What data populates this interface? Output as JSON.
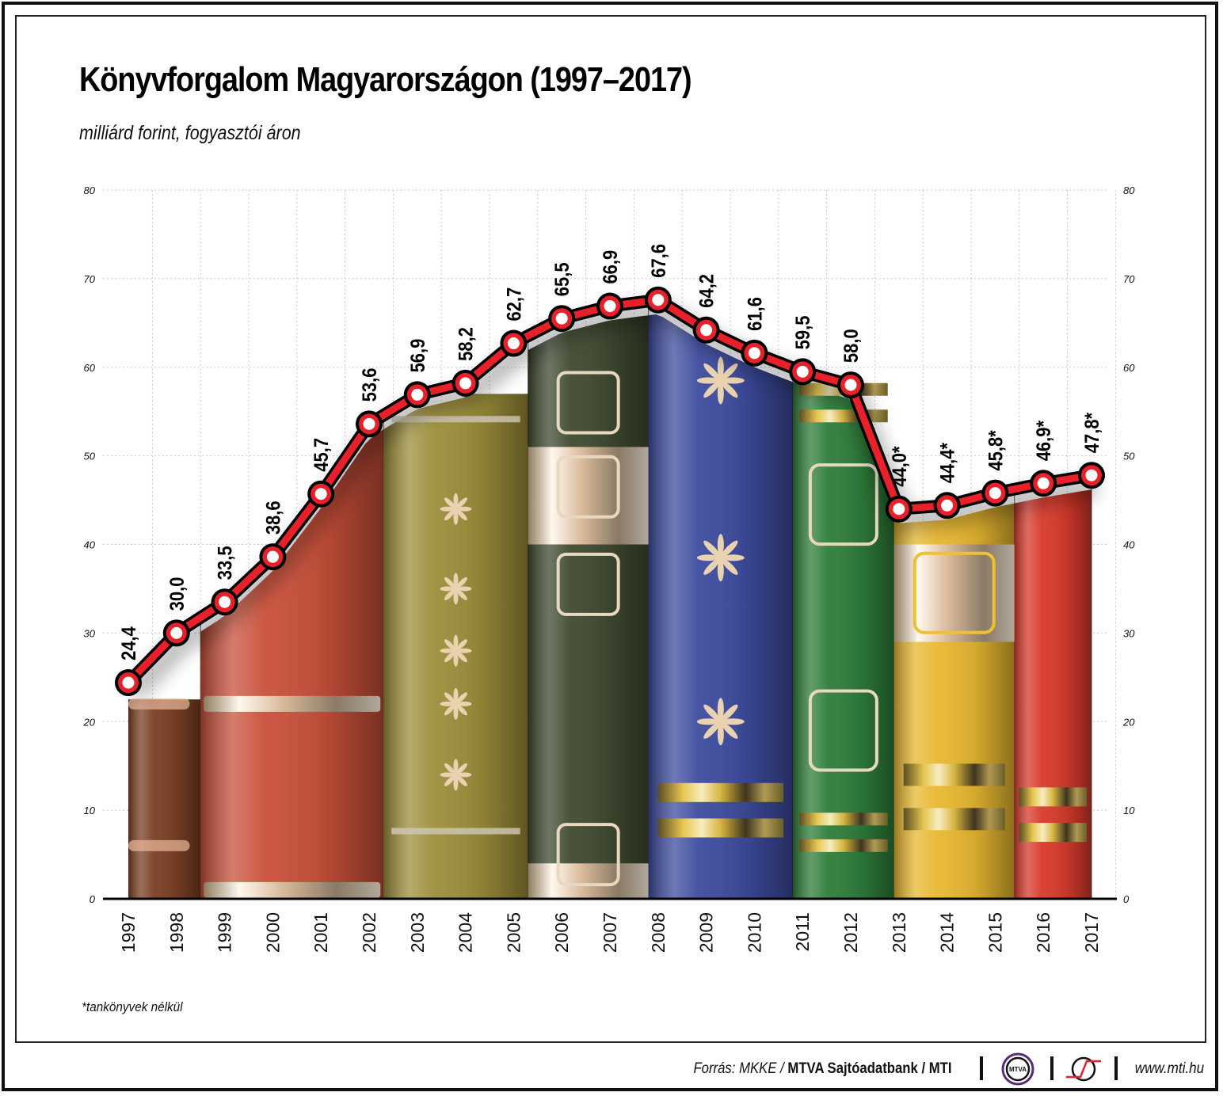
{
  "header": {
    "title": "Könyvforgalom Magyarországon (1997–2017)",
    "subtitle": "milliárd forint, fogyasztói áron"
  },
  "footnote": "*tankönyvek nélkül",
  "footer": {
    "source_prefix": "Forrás: MKKE / ",
    "source_bold": "MTVA Sajtóadatbank / MTI",
    "mtva_logo_text": "MTVA",
    "url": "www.mti.hu"
  },
  "colors": {
    "line": "#e8202a",
    "line_outline": "#000000",
    "marker_fill": "#ffffff",
    "grid": "#c8c8c8"
  },
  "chart_data": {
    "type": "line",
    "title": "Könyvforgalom Magyarországon (1997–2017)",
    "subtitle": "milliárd forint, fogyasztói áron",
    "xlabel": "",
    "ylabel": "milliárd forint",
    "ylim": [
      0,
      80
    ],
    "yticks": [
      0,
      10,
      20,
      30,
      40,
      50,
      60,
      70,
      80
    ],
    "grid": true,
    "legend": null,
    "categories": [
      "1997",
      "1998",
      "1999",
      "2000",
      "2001",
      "2002",
      "2003",
      "2004",
      "2005",
      "2006",
      "2007",
      "2008",
      "2009",
      "2010",
      "2011",
      "2012",
      "2013",
      "2014",
      "2015",
      "2016",
      "2017"
    ],
    "series": [
      {
        "name": "Könyvforgalom",
        "values": [
          24.4,
          30.0,
          33.5,
          38.6,
          45.7,
          53.6,
          56.9,
          58.2,
          62.7,
          65.5,
          66.9,
          67.6,
          64.2,
          61.6,
          59.5,
          58.0,
          44.0,
          44.4,
          45.8,
          46.9,
          47.8
        ],
        "labels": [
          "24,4",
          "30,0",
          "33,5",
          "38,6",
          "45,7",
          "53,6",
          "56,9",
          "58,2",
          "62,7",
          "65,5",
          "66,9",
          "67,6",
          "64,2",
          "61,6",
          "59,5",
          "58,0",
          "44,0*",
          "44,4*",
          "45,8*",
          "46,9*",
          "47,8*"
        ]
      }
    ],
    "annotations": [
      "* tankönyvek nélkül (2013–2017)"
    ],
    "background_books": [
      {
        "from": 0,
        "to": 1.5,
        "color": "#7a3f24",
        "decor": "brown"
      },
      {
        "from": 1.5,
        "to": 5.3,
        "color": "#c9503a",
        "decor": "red"
      },
      {
        "from": 5.3,
        "to": 8.3,
        "color": "#9c8e3a",
        "decor": "olive"
      },
      {
        "from": 8.3,
        "to": 10.8,
        "color": "#3f4a30",
        "decor": "darkgreen"
      },
      {
        "from": 10.8,
        "to": 13.8,
        "color": "#3d4b9e",
        "decor": "blue"
      },
      {
        "from": 13.8,
        "to": 15.9,
        "color": "#2e7d3a",
        "decor": "green"
      },
      {
        "from": 15.9,
        "to": 18.4,
        "color": "#e8b830",
        "decor": "yellow"
      },
      {
        "from": 18.4,
        "to": 20.0,
        "color": "#d83a2c",
        "decor": "scarlet"
      }
    ]
  }
}
